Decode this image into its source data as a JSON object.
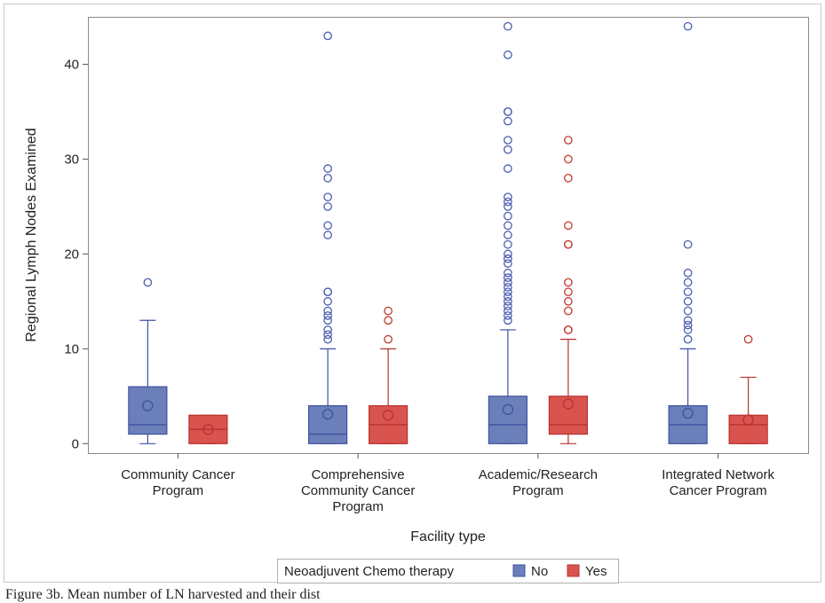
{
  "caption": "Figure 3b. Mean number of LN harvested and their dist",
  "chart_data": {
    "type": "box",
    "xlabel": "Facility type",
    "ylabel": "Regional Lymph Nodes Examined",
    "ylim": [
      -1,
      45
    ],
    "yticks": [
      0,
      10,
      20,
      30,
      40
    ],
    "grid": false,
    "legend": {
      "title": "Neoadjuvent Chemo therapy",
      "placement": "bottom-center",
      "entries": [
        {
          "name": "No",
          "color": "#6b7fba"
        },
        {
          "name": "Yes",
          "color": "#d9534f"
        }
      ]
    },
    "colors": {
      "No": {
        "fill": "#6b7fba",
        "line": "#3f51a0",
        "outlier": "#4a5db0"
      },
      "Yes": {
        "fill": "#d9534f",
        "line": "#b8322e",
        "outlier": "#c0392b"
      }
    },
    "categories": [
      [
        "Community Cancer",
        "Program"
      ],
      [
        "Comprehensive",
        "Community Cancer",
        "Program"
      ],
      [
        "Academic/Research",
        "Program"
      ],
      [
        "Integrated Network",
        "Cancer Program"
      ]
    ],
    "groups": [
      {
        "No": {
          "min": 0,
          "q1": 1,
          "median": 2,
          "q3": 6,
          "max": 13,
          "mean": 4,
          "outliers": [
            17
          ]
        },
        "Yes": {
          "min": 0,
          "q1": 0,
          "median": 1.5,
          "q3": 3,
          "max": 3,
          "mean": 1.5,
          "outliers": []
        }
      },
      {
        "No": {
          "min": 0,
          "q1": 0,
          "median": 1,
          "q3": 4,
          "max": 10,
          "mean": 3.1,
          "outliers": [
            11,
            11.5,
            12,
            13,
            13.5,
            14,
            15,
            16,
            16,
            22,
            23,
            25,
            26,
            28,
            29,
            43
          ]
        },
        "Yes": {
          "min": 0,
          "q1": 0,
          "median": 2,
          "q3": 4,
          "max": 10,
          "mean": 3,
          "outliers": [
            11,
            13,
            14
          ]
        }
      },
      {
        "No": {
          "min": 0,
          "q1": 0,
          "median": 2,
          "q3": 5,
          "max": 12,
          "mean": 3.6,
          "outliers": [
            13,
            13.5,
            14,
            14.5,
            15,
            15.5,
            16,
            16.5,
            17,
            17.5,
            18,
            19,
            19.5,
            20,
            21,
            22,
            23,
            24,
            25,
            25.5,
            26,
            29,
            31,
            32,
            34,
            35,
            35,
            41,
            44
          ]
        },
        "Yes": {
          "min": 0,
          "q1": 1,
          "median": 2,
          "q3": 5,
          "max": 11,
          "mean": 4.2,
          "outliers": [
            12,
            12,
            14,
            15,
            16,
            17,
            21,
            21,
            23,
            28,
            30,
            32
          ]
        }
      },
      {
        "No": {
          "min": 0,
          "q1": 0,
          "median": 2,
          "q3": 4,
          "max": 10,
          "mean": 3.2,
          "outliers": [
            11,
            12,
            12.5,
            13,
            14,
            15,
            16,
            17,
            18,
            21,
            44
          ]
        },
        "Yes": {
          "min": 0,
          "q1": 0,
          "median": 2,
          "q3": 3,
          "max": 7,
          "mean": 2.5,
          "outliers": [
            11
          ]
        }
      }
    ]
  }
}
